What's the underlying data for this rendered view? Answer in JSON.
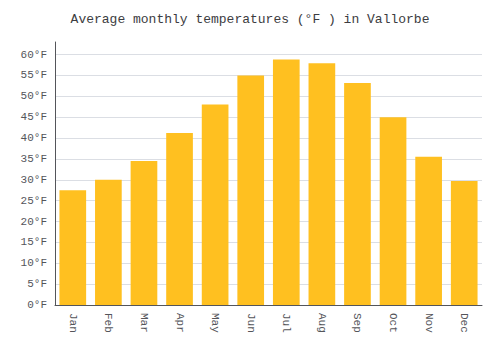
{
  "chart_data": {
    "type": "bar",
    "title": "Average monthly temperatures (°F ) in Vallorbe",
    "categories": [
      "Jan",
      "Feb",
      "Mar",
      "Apr",
      "May",
      "Jun",
      "Jul",
      "Aug",
      "Sep",
      "Oct",
      "Nov",
      "Dec"
    ],
    "values": [
      27.5,
      30.0,
      34.5,
      41.2,
      48.0,
      55.0,
      58.8,
      57.9,
      53.2,
      45.0,
      35.5,
      29.7
    ],
    "color": "#FFC020",
    "ylim": [
      0,
      63
    ],
    "yticks": [
      {
        "value": 0,
        "label": "0°F"
      },
      {
        "value": 5,
        "label": "5°F"
      },
      {
        "value": 10,
        "label": "10°F"
      },
      {
        "value": 15,
        "label": "15°F"
      },
      {
        "value": 20,
        "label": "20°F"
      },
      {
        "value": 25,
        "label": "25°F"
      },
      {
        "value": 30,
        "label": "30°F"
      },
      {
        "value": 35,
        "label": "35°F"
      },
      {
        "value": 40,
        "label": "40°F"
      },
      {
        "value": 45,
        "label": "45°F"
      },
      {
        "value": 50,
        "label": "50°F"
      },
      {
        "value": 55,
        "label": "55°F"
      },
      {
        "value": 60,
        "label": "60°F"
      }
    ],
    "grid": true
  }
}
